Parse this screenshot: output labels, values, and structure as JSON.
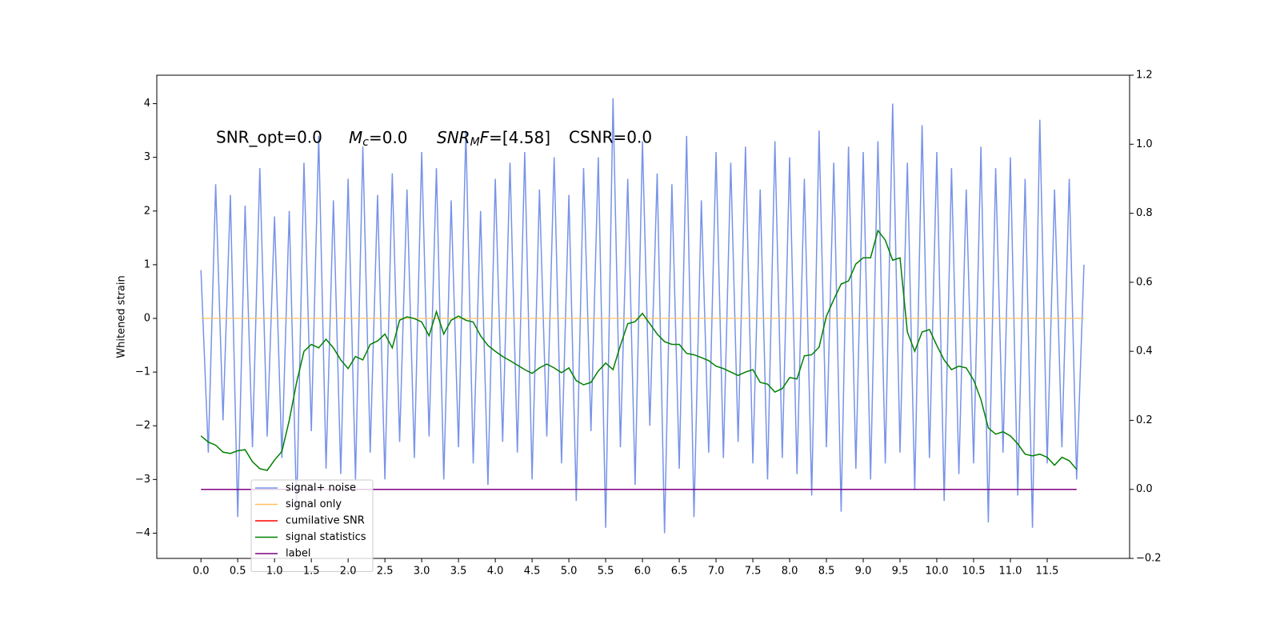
{
  "chart_data": {
    "type": "line",
    "ylabel": "Whitened strain",
    "annotations": [
      {
        "text": "SNR_opt=0.0"
      },
      {
        "italic": "M",
        "sub": "c",
        "text": "=0.0"
      },
      {
        "italic": "SNR",
        "sub": "M",
        "italic2": "F",
        "text": "=[4.58]"
      },
      {
        "text": "CSNR=0.0"
      }
    ],
    "xlim": [
      -0.6,
      12.62
    ],
    "ylim": [
      -4.47,
      4.53
    ],
    "y2lim": [
      -0.2,
      1.2
    ],
    "xticks": [
      {
        "value": 0,
        "label": "0.0"
      },
      0.5,
      {
        "value": 1,
        "label": "1.0"
      },
      1.5,
      {
        "value": 2,
        "label": "2.0"
      },
      2.5,
      {
        "value": 3,
        "label": "3.0"
      },
      3.5,
      {
        "value": 4,
        "label": "4.0"
      },
      4.5,
      {
        "value": 5,
        "label": "5.0"
      },
      5.5,
      {
        "value": 6,
        "label": "6.0"
      },
      6.5,
      {
        "value": 7,
        "label": "7.0"
      },
      7.5,
      {
        "value": 8,
        "label": "8.0"
      },
      8.5,
      {
        "value": 9,
        "label": "9.0"
      },
      9.5,
      {
        "value": 10,
        "label": "10.0"
      },
      10.5,
      {
        "value": 11,
        "label": "11.0"
      },
      11.5
    ],
    "yticks": [
      {
        "value": -4,
        "label": "−4"
      },
      {
        "value": -3,
        "label": "−3"
      },
      {
        "value": -2,
        "label": "−2"
      },
      {
        "value": -1,
        "label": "−1"
      },
      0,
      1,
      2,
      3,
      4
    ],
    "y2ticks": [
      {
        "value": -0.2,
        "label": "−0.2"
      },
      {
        "value": 0,
        "label": "0.0"
      },
      0.2,
      0.4,
      0.6,
      0.8,
      {
        "value": 1,
        "label": "1.0"
      },
      1.2
    ],
    "x": [
      0,
      0.1,
      0.2,
      0.3,
      0.4,
      0.5,
      0.6,
      0.7,
      0.8,
      0.9,
      1,
      1.1,
      1.2,
      1.3,
      1.4,
      1.5,
      1.6,
      1.7,
      1.8,
      1.9,
      2,
      2.1,
      2.2,
      2.3,
      2.4,
      2.5,
      2.6,
      2.7,
      2.8,
      2.9,
      3,
      3.1,
      3.2,
      3.3,
      3.4,
      3.5,
      3.6,
      3.7,
      3.8,
      3.9,
      4,
      4.1,
      4.2,
      4.3,
      4.4,
      4.5,
      4.6,
      4.7,
      4.8,
      4.9,
      5,
      5.1,
      5.2,
      5.3,
      5.4,
      5.5,
      5.6,
      5.7,
      5.8,
      5.9,
      6,
      6.1,
      6.2,
      6.3,
      6.4,
      6.5,
      6.6,
      6.7,
      6.8,
      6.9,
      7,
      7.1,
      7.2,
      7.3,
      7.4,
      7.5,
      7.6,
      7.7,
      7.8,
      7.9,
      8,
      8.1,
      8.2,
      8.3,
      8.4,
      8.5,
      8.6,
      8.7,
      8.8,
      8.9,
      9,
      9.1,
      9.2,
      9.3,
      9.4,
      9.5,
      9.6,
      9.7,
      9.8,
      9.9,
      10,
      10.1,
      10.2,
      10.3,
      10.4,
      10.5,
      10.6,
      10.7,
      10.8,
      10.9,
      11,
      11.1,
      11.2,
      11.3,
      11.4,
      11.5,
      11.6,
      11.7,
      11.8,
      11.9,
      12
    ],
    "legend": "lower left",
    "series": [
      {
        "name": "signal+ noise",
        "color": "#7893e8",
        "values": [
          0.9,
          -2.5,
          2.5,
          -1.9,
          2.3,
          -3.7,
          2.1,
          -2.4,
          2.8,
          -2.2,
          1.9,
          -2.6,
          2.0,
          -3.6,
          2.9,
          -2.1,
          3.4,
          -2.8,
          2.2,
          -2.9,
          2.6,
          -3.0,
          3.2,
          -2.5,
          2.3,
          -3.0,
          2.7,
          -2.3,
          2.4,
          -2.6,
          3.1,
          -2.2,
          2.8,
          -3.0,
          2.2,
          -2.4,
          3.5,
          -2.7,
          2.0,
          -3.1,
          2.6,
          -2.3,
          2.9,
          -2.5,
          3.1,
          -3.0,
          2.4,
          -2.2,
          3.0,
          -2.7,
          2.3,
          -3.4,
          2.8,
          -2.1,
          3.0,
          -3.9,
          4.1,
          -2.4,
          2.6,
          -3.1,
          3.3,
          -2.0,
          2.7,
          -4.0,
          2.5,
          -2.8,
          3.4,
          -3.7,
          2.2,
          -2.5,
          3.1,
          -2.6,
          2.9,
          -2.3,
          3.2,
          -2.7,
          2.4,
          -3.0,
          3.3,
          -2.6,
          3.0,
          -2.9,
          2.6,
          -3.3,
          3.5,
          -2.4,
          2.9,
          -3.6,
          3.2,
          -2.8,
          3.1,
          -3.0,
          3.3,
          -2.7,
          4.0,
          -2.5,
          2.9,
          -3.2,
          3.6,
          -2.6,
          3.1,
          -3.4,
          2.8,
          -2.9,
          2.4,
          -2.7,
          3.2,
          -3.8,
          2.8,
          -2.5,
          3.0,
          -3.3,
          2.6,
          -3.9,
          3.7,
          -2.7,
          2.4,
          -2.4,
          2.6,
          -3.0,
          1.0
        ]
      },
      {
        "name": "signal only",
        "color": "#ffc060",
        "values": [
          0,
          0,
          0,
          0,
          0,
          0,
          0,
          0,
          0,
          0,
          0,
          0,
          0,
          0,
          0,
          0,
          0,
          0,
          0,
          0,
          0,
          0,
          0,
          0,
          0,
          0,
          0,
          0,
          0,
          0,
          0,
          0,
          0,
          0,
          0,
          0,
          0,
          0,
          0,
          0,
          0,
          0,
          0,
          0,
          0,
          0,
          0,
          0,
          0,
          0,
          0,
          0,
          0,
          0,
          0,
          0,
          0,
          0,
          0,
          0,
          0,
          0,
          0,
          0,
          0,
          0,
          0,
          0,
          0,
          0,
          0,
          0,
          0,
          0,
          0,
          0,
          0,
          0,
          0,
          0,
          0,
          0,
          0,
          0,
          0,
          0,
          0,
          0,
          0,
          0,
          0,
          0,
          0,
          0,
          0,
          0,
          0,
          0,
          0,
          0,
          0,
          0,
          0,
          0,
          0,
          0,
          0,
          0,
          0,
          0,
          0,
          0,
          0,
          0,
          0,
          0,
          0,
          0,
          0,
          0,
          0
        ]
      },
      {
        "name": "cumilative SNR",
        "color": "#ff0000"
      },
      {
        "name": "signal statistics",
        "color": "#008000",
        "axis": "y2",
        "values": [
          0.155,
          0.137,
          0.128,
          0.108,
          0.104,
          0.112,
          0.115,
          0.08,
          0.06,
          0.055,
          0.085,
          0.11,
          0.2,
          0.31,
          0.4,
          0.42,
          0.41,
          0.435,
          0.41,
          0.375,
          0.35,
          0.385,
          0.375,
          0.42,
          0.43,
          0.45,
          0.41,
          0.49,
          0.5,
          0.495,
          0.485,
          0.445,
          0.515,
          0.45,
          0.49,
          0.502,
          0.49,
          0.485,
          0.445,
          0.417,
          0.4,
          0.385,
          0.373,
          0.36,
          0.347,
          0.336,
          0.352,
          0.363,
          0.352,
          0.338,
          0.352,
          0.315,
          0.303,
          0.31,
          0.343,
          0.366,
          0.347,
          0.417,
          0.48,
          0.486,
          0.51,
          0.48,
          0.45,
          0.428,
          0.42,
          0.42,
          0.394,
          0.39,
          0.382,
          0.373,
          0.357,
          0.35,
          0.34,
          0.33,
          0.34,
          0.347,
          0.31,
          0.305,
          0.282,
          0.292,
          0.324,
          0.32,
          0.387,
          0.39,
          0.412,
          0.502,
          0.55,
          0.595,
          0.604,
          0.653,
          0.671,
          0.671,
          0.75,
          0.722,
          0.664,
          0.671,
          0.456,
          0.4,
          0.456,
          0.463,
          0.417,
          0.375,
          0.347,
          0.357,
          0.352,
          0.317,
          0.26,
          0.178,
          0.16,
          0.167,
          0.155,
          0.132,
          0.102,
          0.097,
          0.102,
          0.093,
          0.07,
          0.093,
          0.083,
          0.058,
          null
        ]
      },
      {
        "name": "label",
        "color": "#800080",
        "axis": "y2",
        "values": [
          0,
          0,
          0,
          0,
          0,
          0,
          0,
          0,
          0,
          0,
          0,
          0,
          0,
          0,
          0,
          0,
          0,
          0,
          0,
          0,
          0,
          0,
          0,
          0,
          0,
          0,
          0,
          0,
          0,
          0,
          0,
          0,
          0,
          0,
          0,
          0,
          0,
          0,
          0,
          0,
          0,
          0,
          0,
          0,
          0,
          0,
          0,
          0,
          0,
          0,
          0,
          0,
          0,
          0,
          0,
          0,
          0,
          0,
          0,
          0,
          0,
          0,
          0,
          0,
          0,
          0,
          0,
          0,
          0,
          0,
          0,
          0,
          0,
          0,
          0,
          0,
          0,
          0,
          0,
          0,
          0,
          0,
          0,
          0,
          0,
          0,
          0,
          0,
          0,
          0,
          0,
          0,
          0,
          0,
          0,
          0,
          0,
          0,
          0,
          0,
          0,
          0,
          0,
          0,
          0,
          0,
          0,
          0,
          0,
          0,
          0,
          0,
          0,
          0,
          0,
          0,
          0,
          0,
          0,
          0,
          null
        ]
      }
    ]
  }
}
